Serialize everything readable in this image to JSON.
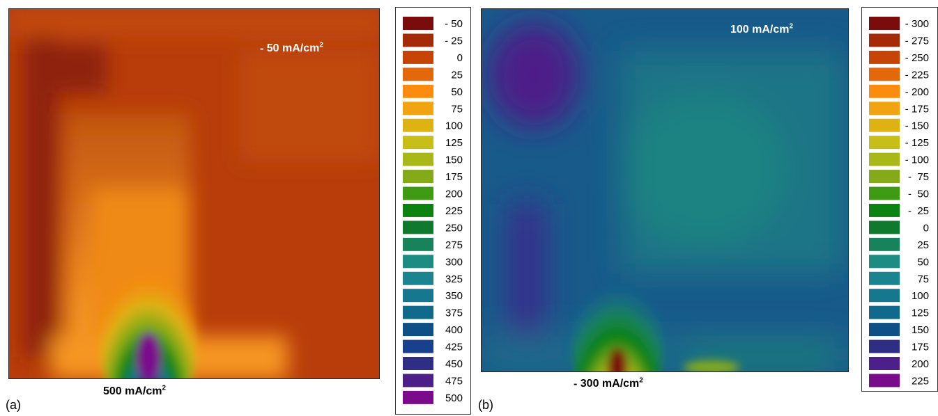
{
  "chart_data": [
    {
      "type": "heatmap",
      "panel_label": "(a)",
      "annotations": {
        "top_right": {
          "prefix": "- ",
          "value": "50 mA/cm",
          "sup": "2"
        },
        "bottom": {
          "prefix": "",
          "value": "500 mA/cm",
          "sup": "2"
        }
      },
      "colorbar": {
        "labels": [
          "- 50",
          "- 25",
          "0",
          "25",
          "50",
          "75",
          "100",
          "125",
          "150",
          "175",
          "200",
          "225",
          "250",
          "275",
          "300",
          "325",
          "350",
          "375",
          "400",
          "425",
          "450",
          "475",
          "500"
        ],
        "colors": [
          "#7a0c0c",
          "#a42a08",
          "#c54406",
          "#e2680a",
          "#fb8c0d",
          "#f2a312",
          "#ddb314",
          "#c8be18",
          "#a8b818",
          "#84aa1a",
          "#3f9a14",
          "#0c8210",
          "#0f7a2e",
          "#18825a",
          "#1d8c82",
          "#1a8590",
          "#15788e",
          "#116a8c",
          "#0e4f86",
          "#19408c",
          "#2e2f84",
          "#4d1f88",
          "#7a0c8c"
        ]
      },
      "range": [
        -50,
        500
      ],
      "field_description_colors": {
        "background": "#b83d0a",
        "dark_border": "#8b2208",
        "column": "#e07a1a",
        "hotspot": "#7a0c8c"
      }
    },
    {
      "type": "heatmap",
      "panel_label": "(b)",
      "annotations": {
        "top_right": {
          "prefix": "",
          "value": "100 mA/cm",
          "sup": "2"
        },
        "bottom": {
          "prefix": "- ",
          "value": "300 mA/cm",
          "sup": "2"
        }
      },
      "colorbar": {
        "labels": [
          "- 300",
          "- 275",
          "- 250",
          "- 225",
          "- 200",
          "- 175",
          "- 150",
          "- 125",
          "- 100",
          "-  75",
          "-  50",
          "-  25",
          "0",
          "25",
          "50",
          "75",
          "100",
          "125",
          "150",
          "175",
          "200",
          "225"
        ],
        "colors": [
          "#7a0c0c",
          "#a42a08",
          "#c54406",
          "#e2680a",
          "#fb8c0d",
          "#f2a312",
          "#ddb314",
          "#c8be18",
          "#a8b818",
          "#84aa1a",
          "#3f9a14",
          "#0c8210",
          "#0f7a2e",
          "#18825a",
          "#1d8c82",
          "#1a8590",
          "#15788e",
          "#116a8c",
          "#0e4f86",
          "#2e2f84",
          "#4d1f88",
          "#7a0c8c"
        ]
      },
      "range": [
        -300,
        225
      ],
      "field_description_colors": {
        "background": "#1a5f8a",
        "teal_zone": "#1b7d88",
        "violet_zone": "#4a2a8c",
        "hotspot": "#7a0c0c"
      }
    }
  ]
}
